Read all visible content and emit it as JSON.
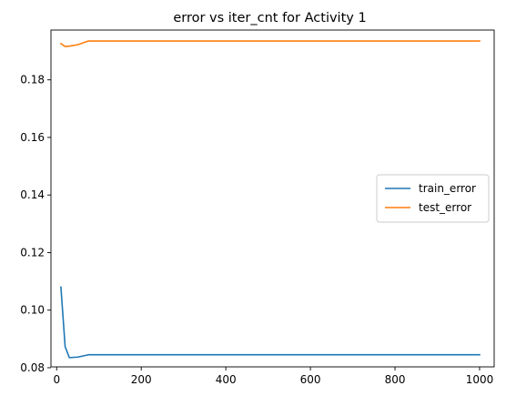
{
  "chart_data": {
    "type": "line",
    "title": "error vs iter_cnt for Activity 1",
    "xlabel": "",
    "ylabel": "",
    "xlim": [
      -13.5,
      1034.5
    ],
    "ylim": [
      0.0803,
      0.1973
    ],
    "xticks": [
      0,
      200,
      400,
      600,
      800,
      1000
    ],
    "yticks": [
      0.08,
      0.1,
      0.12,
      0.14,
      0.16,
      0.18
    ],
    "ytick_labels": [
      "0.08",
      "0.10",
      "0.12",
      "0.14",
      "0.16",
      "0.18"
    ],
    "grid": false,
    "legend_position": "center-right",
    "series": [
      {
        "name": "train_error",
        "color": "#1f77b4",
        "x": [
          10,
          20,
          30,
          50,
          75,
          100,
          150,
          200,
          300,
          400,
          500,
          600,
          700,
          800,
          900,
          1000
        ],
        "y": [
          0.108,
          0.0873,
          0.0835,
          0.0837,
          0.0845,
          0.0845,
          0.0845,
          0.0845,
          0.0845,
          0.0845,
          0.0845,
          0.0845,
          0.0845,
          0.0845,
          0.0845,
          0.0845
        ]
      },
      {
        "name": "test_error",
        "color": "#ff7f0e",
        "x": [
          10,
          20,
          30,
          50,
          75,
          100,
          150,
          200,
          300,
          400,
          500,
          600,
          700,
          800,
          900,
          1000
        ],
        "y": [
          0.1926,
          0.1916,
          0.1917,
          0.1922,
          0.1935,
          0.1935,
          0.1935,
          0.1935,
          0.1935,
          0.1935,
          0.1935,
          0.1935,
          0.1935,
          0.1935,
          0.1935,
          0.1935
        ]
      }
    ]
  }
}
